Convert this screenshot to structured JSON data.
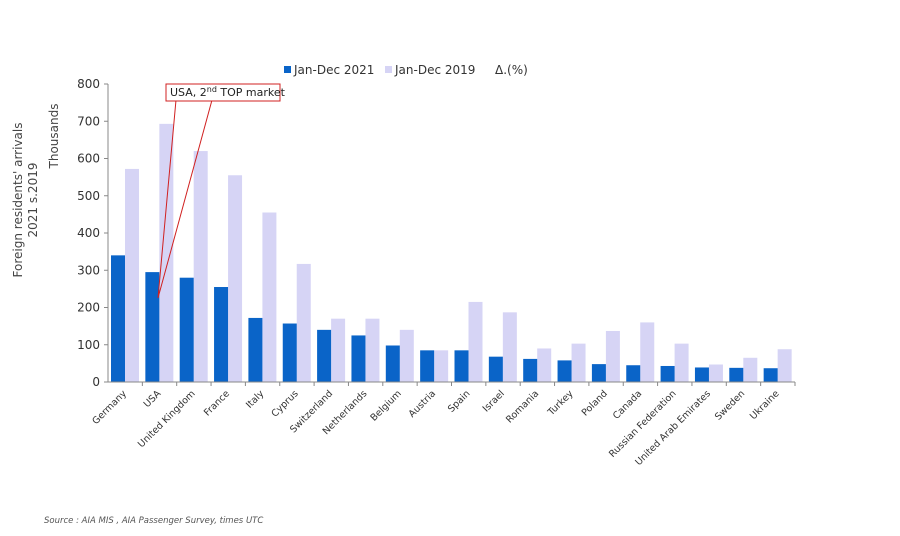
{
  "chart_data": {
    "type": "bar",
    "ylabel": "Thousands",
    "side_title_line1": "Foreign residents' arrivals",
    "side_title_line2": "2021 s.2019",
    "ylim": [
      0,
      800
    ],
    "yticks": [
      0,
      100,
      200,
      300,
      400,
      500,
      600,
      700,
      800
    ],
    "grid": false,
    "legend_position": "top",
    "categories": [
      "Germany",
      "USA",
      "United Kingdom",
      "France",
      "Italy",
      "Cyprus",
      "Switzerland",
      "Netherlands",
      "Belgium",
      "Austria",
      "Spain",
      "Israel",
      "Romania",
      "Turkey",
      "Poland",
      "Canada",
      "Russian Federation",
      "United Arab Emirates",
      "Sweden",
      "Ukraine"
    ],
    "series": [
      {
        "name": "Jan-Dec 2021",
        "color": "#0a64c8",
        "values": [
          340,
          295,
          280,
          255,
          172,
          157,
          140,
          125,
          98,
          85,
          85,
          68,
          62,
          58,
          48,
          45,
          43,
          39,
          38,
          37
        ]
      },
      {
        "name": "Jan-Dec 2019",
        "color": "#d6d4f5",
        "values": [
          572,
          693,
          620,
          555,
          455,
          317,
          170,
          170,
          140,
          85,
          215,
          187,
          90,
          103,
          137,
          160,
          103,
          47,
          65,
          88
        ]
      }
    ],
    "legend_extra": "Δ.(%)",
    "annotation": {
      "text_main": "USA, 2",
      "text_sup": "nd",
      "text_end": " TOP market"
    }
  },
  "source_note": "Source : AIA MIS , AIA Passenger Survey, times UTC"
}
